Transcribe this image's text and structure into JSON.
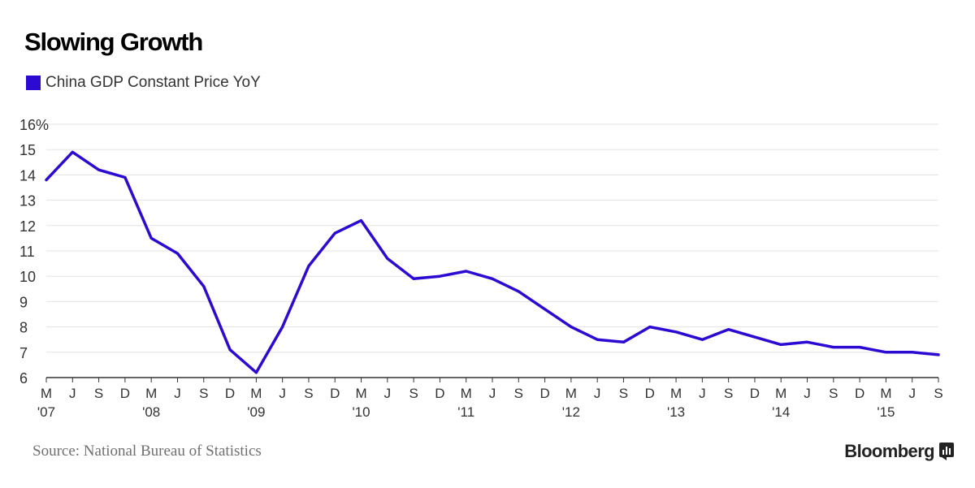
{
  "chart_data": {
    "type": "line",
    "title": "Slowing Growth",
    "legend": "China GDP Constant Price YoY",
    "series_color": "#2d0ad2",
    "ylim": [
      6,
      16
    ],
    "yticks": [
      "16%",
      "15",
      "14",
      "13",
      "12",
      "11",
      "10",
      "9",
      "8",
      "7",
      "6"
    ],
    "ytick_values": [
      16,
      15,
      14,
      13,
      12,
      11,
      10,
      9,
      8,
      7,
      6
    ],
    "x_ticks": [
      {
        "month": "M",
        "year": "'07"
      },
      {
        "month": "J",
        "year": ""
      },
      {
        "month": "S",
        "year": ""
      },
      {
        "month": "D",
        "year": ""
      },
      {
        "month": "M",
        "year": "'08"
      },
      {
        "month": "J",
        "year": ""
      },
      {
        "month": "S",
        "year": ""
      },
      {
        "month": "D",
        "year": ""
      },
      {
        "month": "M",
        "year": "'09"
      },
      {
        "month": "J",
        "year": ""
      },
      {
        "month": "S",
        "year": ""
      },
      {
        "month": "D",
        "year": ""
      },
      {
        "month": "M",
        "year": "'10"
      },
      {
        "month": "J",
        "year": ""
      },
      {
        "month": "S",
        "year": ""
      },
      {
        "month": "D",
        "year": ""
      },
      {
        "month": "M",
        "year": "'11"
      },
      {
        "month": "J",
        "year": ""
      },
      {
        "month": "S",
        "year": ""
      },
      {
        "month": "D",
        "year": ""
      },
      {
        "month": "M",
        "year": "'12"
      },
      {
        "month": "J",
        "year": ""
      },
      {
        "month": "S",
        "year": ""
      },
      {
        "month": "D",
        "year": ""
      },
      {
        "month": "M",
        "year": "'13"
      },
      {
        "month": "J",
        "year": ""
      },
      {
        "month": "S",
        "year": ""
      },
      {
        "month": "D",
        "year": ""
      },
      {
        "month": "M",
        "year": "'14"
      },
      {
        "month": "J",
        "year": ""
      },
      {
        "month": "S",
        "year": ""
      },
      {
        "month": "D",
        "year": ""
      },
      {
        "month": "M",
        "year": "'15"
      },
      {
        "month": "J",
        "year": ""
      },
      {
        "month": "S",
        "year": ""
      }
    ],
    "values": [
      13.8,
      14.9,
      14.2,
      13.9,
      11.5,
      10.9,
      9.6,
      7.1,
      6.2,
      8.0,
      10.4,
      11.7,
      12.2,
      10.7,
      9.9,
      10.0,
      10.2,
      9.9,
      9.4,
      8.7,
      8.0,
      7.5,
      7.4,
      8.0,
      7.8,
      7.5,
      7.9,
      7.6,
      7.3,
      7.4,
      7.2,
      7.2,
      7.0,
      7.0,
      6.9
    ]
  },
  "footer": {
    "source": "Source: National Bureau of Statistics",
    "brand": "Bloomberg"
  }
}
